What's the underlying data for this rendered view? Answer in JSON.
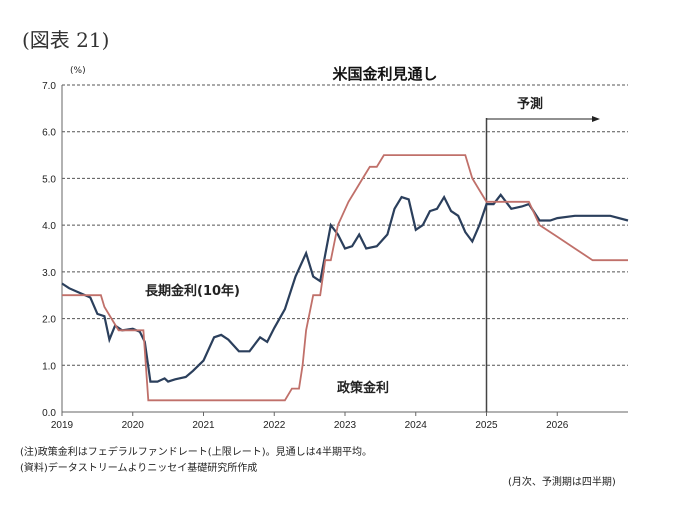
{
  "figure_label": "(図表 21)",
  "chart_data": {
    "type": "line",
    "title": "米国金利見通し",
    "ylabel": "(%)",
    "ylim": [
      0,
      7
    ],
    "yticks": [
      "0.0",
      "1.0",
      "2.0",
      "3.0",
      "4.0",
      "5.0",
      "6.0",
      "7.0"
    ],
    "xlim": [
      2019,
      2027
    ],
    "xticks": [
      "2019",
      "2020",
      "2021",
      "2022",
      "2023",
      "2024",
      "2025",
      "2026"
    ],
    "forecast_start": 2025,
    "forecast_label": "予測",
    "series": [
      {
        "name": "長期金利(10年)",
        "color": "#2b3f5c",
        "points": [
          [
            2019,
            2.75
          ],
          [
            2019.1,
            2.65
          ],
          [
            2019.25,
            2.55
          ],
          [
            2019.4,
            2.45
          ],
          [
            2019.5,
            2.1
          ],
          [
            2019.6,
            2.05
          ],
          [
            2019.67,
            1.55
          ],
          [
            2019.75,
            1.85
          ],
          [
            2019.85,
            1.75
          ],
          [
            2020.0,
            1.78
          ],
          [
            2020.1,
            1.72
          ],
          [
            2020.17,
            1.5
          ],
          [
            2020.25,
            0.65
          ],
          [
            2020.35,
            0.65
          ],
          [
            2020.45,
            0.72
          ],
          [
            2020.5,
            0.65
          ],
          [
            2020.6,
            0.7
          ],
          [
            2020.75,
            0.75
          ],
          [
            2020.85,
            0.88
          ],
          [
            2021.0,
            1.1
          ],
          [
            2021.15,
            1.6
          ],
          [
            2021.25,
            1.65
          ],
          [
            2021.35,
            1.55
          ],
          [
            2021.5,
            1.3
          ],
          [
            2021.65,
            1.3
          ],
          [
            2021.8,
            1.6
          ],
          [
            2021.9,
            1.5
          ],
          [
            2022.0,
            1.8
          ],
          [
            2022.15,
            2.2
          ],
          [
            2022.3,
            2.9
          ],
          [
            2022.45,
            3.4
          ],
          [
            2022.55,
            2.9
          ],
          [
            2022.65,
            2.8
          ],
          [
            2022.8,
            4.0
          ],
          [
            2022.9,
            3.8
          ],
          [
            2023.0,
            3.5
          ],
          [
            2023.1,
            3.55
          ],
          [
            2023.2,
            3.8
          ],
          [
            2023.3,
            3.5
          ],
          [
            2023.45,
            3.55
          ],
          [
            2023.6,
            3.8
          ],
          [
            2023.7,
            4.35
          ],
          [
            2023.8,
            4.6
          ],
          [
            2023.9,
            4.55
          ],
          [
            2024.0,
            3.9
          ],
          [
            2024.1,
            4.0
          ],
          [
            2024.2,
            4.3
          ],
          [
            2024.3,
            4.35
          ],
          [
            2024.4,
            4.6
          ],
          [
            2024.5,
            4.3
          ],
          [
            2024.6,
            4.2
          ],
          [
            2024.7,
            3.85
          ],
          [
            2024.8,
            3.65
          ],
          [
            2024.9,
            4.0
          ],
          [
            2025.0,
            4.45
          ],
          [
            2025.1,
            4.45
          ],
          [
            2025.2,
            4.65
          ],
          [
            2025.35,
            4.35
          ],
          [
            2025.5,
            4.4
          ],
          [
            2025.6,
            4.45
          ],
          [
            2025.75,
            4.1
          ],
          [
            2025.9,
            4.1
          ],
          [
            2026.0,
            4.15
          ],
          [
            2026.25,
            4.2
          ],
          [
            2026.5,
            4.2
          ],
          [
            2026.75,
            4.2
          ],
          [
            2027.0,
            4.1
          ]
        ]
      },
      {
        "name": "政策金利",
        "color": "#c0706a",
        "points": [
          [
            2019,
            2.5
          ],
          [
            2019.55,
            2.5
          ],
          [
            2019.6,
            2.25
          ],
          [
            2019.7,
            2.0
          ],
          [
            2019.8,
            1.75
          ],
          [
            2020.15,
            1.75
          ],
          [
            2020.22,
            0.25
          ],
          [
            2022.15,
            0.25
          ],
          [
            2022.25,
            0.5
          ],
          [
            2022.35,
            0.5
          ],
          [
            2022.4,
            1.0
          ],
          [
            2022.45,
            1.75
          ],
          [
            2022.55,
            2.5
          ],
          [
            2022.65,
            2.5
          ],
          [
            2022.72,
            3.25
          ],
          [
            2022.8,
            3.25
          ],
          [
            2022.9,
            4.0
          ],
          [
            2023.05,
            4.5
          ],
          [
            2023.15,
            4.75
          ],
          [
            2023.25,
            5.0
          ],
          [
            2023.35,
            5.25
          ],
          [
            2023.45,
            5.25
          ],
          [
            2023.55,
            5.5
          ],
          [
            2024.7,
            5.5
          ],
          [
            2024.8,
            5.0
          ],
          [
            2024.9,
            4.75
          ],
          [
            2025.0,
            4.5
          ],
          [
            2025.6,
            4.5
          ],
          [
            2025.75,
            4.0
          ],
          [
            2026.0,
            3.75
          ],
          [
            2026.25,
            3.5
          ],
          [
            2026.5,
            3.25
          ],
          [
            2027.0,
            3.25
          ]
        ]
      }
    ],
    "annotations": [
      "長期金利(10年)",
      "政策金利"
    ]
  },
  "notes": {
    "note1": "(注)政策金利はフェデラルファンドレート(上限レート)。見通しは4半期平均。",
    "source": "(資料)データストリームよりニッセイ基礎研究所作成",
    "frequency": "(月次、予測期は四半期)"
  }
}
